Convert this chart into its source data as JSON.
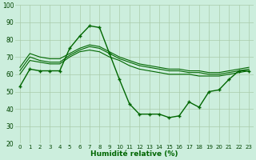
{
  "xlabel": "Humidité relative (%)",
  "bg_color": "#cceedd",
  "grid_color": "#aaccaa",
  "line_color": "#006600",
  "xlim": [
    -0.5,
    23.5
  ],
  "ylim": [
    20,
    100
  ],
  "yticks": [
    20,
    30,
    40,
    50,
    60,
    70,
    80,
    90,
    100
  ],
  "xticks": [
    0,
    1,
    2,
    3,
    4,
    5,
    6,
    7,
    8,
    9,
    10,
    11,
    12,
    13,
    14,
    15,
    16,
    17,
    18,
    19,
    20,
    21,
    22,
    23
  ],
  "line_marked": {
    "x": [
      0,
      1,
      2,
      3,
      4,
      5,
      6,
      7,
      8,
      9,
      10,
      11,
      12,
      13,
      14,
      15,
      16,
      17,
      18,
      19,
      20,
      21,
      22,
      23
    ],
    "y": [
      53,
      63,
      62,
      62,
      62,
      75,
      82,
      88,
      87,
      72,
      57,
      43,
      37,
      37,
      37,
      35,
      36,
      44,
      41,
      50,
      51,
      57,
      62,
      62
    ]
  },
  "line_smooth1": {
    "x": [
      0,
      1,
      2,
      3,
      4,
      5,
      6,
      7,
      8,
      9,
      10,
      11,
      12,
      13,
      14,
      15,
      16,
      17,
      18,
      19,
      20,
      21,
      22,
      23
    ],
    "y": [
      60,
      68,
      67,
      66,
      66,
      70,
      73,
      74,
      73,
      70,
      68,
      65,
      63,
      62,
      61,
      60,
      60,
      60,
      59,
      59,
      59,
      60,
      61,
      62
    ]
  },
  "line_smooth2": {
    "x": [
      0,
      1,
      2,
      3,
      4,
      5,
      6,
      7,
      8,
      9,
      10,
      11,
      12,
      13,
      14,
      15,
      16,
      17,
      18,
      19,
      20,
      21,
      22,
      23
    ],
    "y": [
      62,
      70,
      68,
      67,
      67,
      71,
      74,
      76,
      75,
      72,
      69,
      67,
      65,
      64,
      63,
      62,
      62,
      61,
      61,
      60,
      60,
      61,
      62,
      63
    ]
  },
  "line_smooth3": {
    "x": [
      0,
      1,
      2,
      3,
      4,
      5,
      6,
      7,
      8,
      9,
      10,
      11,
      12,
      13,
      14,
      15,
      16,
      17,
      18,
      19,
      20,
      21,
      22,
      23
    ],
    "y": [
      64,
      72,
      70,
      69,
      69,
      72,
      75,
      77,
      76,
      73,
      70,
      68,
      66,
      65,
      64,
      63,
      63,
      62,
      62,
      61,
      61,
      62,
      63,
      64
    ]
  }
}
